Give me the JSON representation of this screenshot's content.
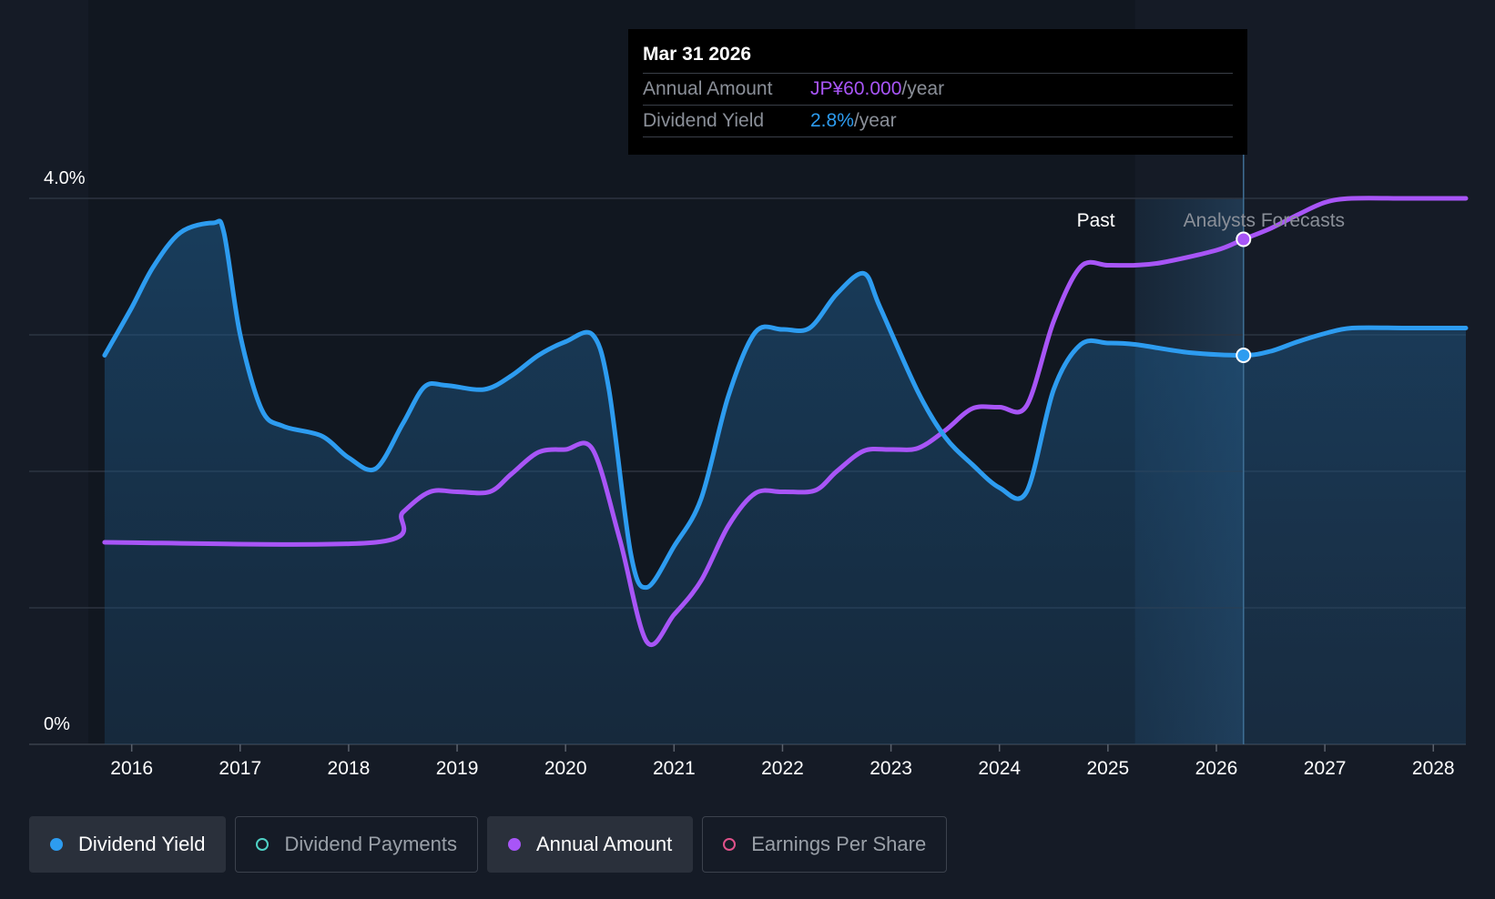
{
  "tooltip": {
    "date": "Mar 31 2026",
    "rows": [
      {
        "label": "Annual Amount",
        "value": "JP¥60.000",
        "unit": "/year"
      },
      {
        "label": "Dividend Yield",
        "value": "2.8%",
        "unit": "/year"
      }
    ]
  },
  "regions": {
    "past": "Past",
    "forecast": "Analysts Forecasts"
  },
  "legend": [
    {
      "label": "Dividend Yield",
      "color": "#2d9cf0",
      "active": true,
      "filled": true
    },
    {
      "label": "Dividend Payments",
      "color": "#4fd1c5",
      "active": false,
      "filled": false
    },
    {
      "label": "Annual Amount",
      "color": "#a855f7",
      "active": true,
      "filled": true
    },
    {
      "label": "Earnings Per Share",
      "color": "#e0528a",
      "active": false,
      "filled": false
    }
  ],
  "chart_data": {
    "type": "line",
    "xlim": [
      2015.6,
      2028.3
    ],
    "ylim": [
      0,
      4.0
    ],
    "ytick_labels": [
      {
        "value": 4.0,
        "label": "4.0%"
      },
      {
        "value": 0,
        "label": "0%"
      }
    ],
    "grid_values": [
      1.0,
      2.0,
      3.0
    ],
    "x_ticks": [
      2016,
      2017,
      2018,
      2019,
      2020,
      2021,
      2022,
      2023,
      2024,
      2025,
      2026,
      2027,
      2028
    ],
    "forecast_start": 2025.25,
    "highlight_x": 2026.25,
    "series": [
      {
        "name": "Dividend Yield",
        "color": "#2d9cf0",
        "unit": "%",
        "points": [
          [
            2015.75,
            2.85
          ],
          [
            2016.0,
            3.2
          ],
          [
            2016.2,
            3.5
          ],
          [
            2016.45,
            3.75
          ],
          [
            2016.75,
            3.82
          ],
          [
            2016.85,
            3.75
          ],
          [
            2017.0,
            3.0
          ],
          [
            2017.2,
            2.45
          ],
          [
            2017.4,
            2.33
          ],
          [
            2017.75,
            2.26
          ],
          [
            2018.0,
            2.1
          ],
          [
            2018.25,
            2.02
          ],
          [
            2018.5,
            2.35
          ],
          [
            2018.7,
            2.62
          ],
          [
            2018.9,
            2.63
          ],
          [
            2019.25,
            2.6
          ],
          [
            2019.5,
            2.7
          ],
          [
            2019.75,
            2.85
          ],
          [
            2020.0,
            2.95
          ],
          [
            2020.25,
            3.0
          ],
          [
            2020.4,
            2.6
          ],
          [
            2020.6,
            1.4
          ],
          [
            2020.75,
            1.15
          ],
          [
            2021.0,
            1.45
          ],
          [
            2021.25,
            1.8
          ],
          [
            2021.5,
            2.55
          ],
          [
            2021.75,
            3.02
          ],
          [
            2022.0,
            3.04
          ],
          [
            2022.25,
            3.05
          ],
          [
            2022.5,
            3.3
          ],
          [
            2022.75,
            3.45
          ],
          [
            2022.9,
            3.2
          ],
          [
            2023.25,
            2.58
          ],
          [
            2023.5,
            2.25
          ],
          [
            2023.75,
            2.05
          ],
          [
            2024.0,
            1.88
          ],
          [
            2024.25,
            1.85
          ],
          [
            2024.5,
            2.6
          ],
          [
            2024.75,
            2.93
          ],
          [
            2025.0,
            2.94
          ],
          [
            2025.25,
            2.93
          ],
          [
            2025.75,
            2.87
          ],
          [
            2026.25,
            2.85
          ],
          [
            2026.5,
            2.88
          ],
          [
            2026.75,
            2.95
          ],
          [
            2027.0,
            3.01
          ],
          [
            2027.25,
            3.05
          ],
          [
            2027.75,
            3.05
          ],
          [
            2028.3,
            3.05
          ]
        ]
      },
      {
        "name": "Annual Amount",
        "color": "#a855f7",
        "unit": "%",
        "points": [
          [
            2015.75,
            1.48
          ],
          [
            2018.25,
            1.48
          ],
          [
            2018.5,
            1.7
          ],
          [
            2018.75,
            1.85
          ],
          [
            2019.0,
            1.85
          ],
          [
            2019.3,
            1.85
          ],
          [
            2019.5,
            1.98
          ],
          [
            2019.75,
            2.14
          ],
          [
            2020.0,
            2.16
          ],
          [
            2020.25,
            2.16
          ],
          [
            2020.5,
            1.5
          ],
          [
            2020.75,
            0.75
          ],
          [
            2021.0,
            0.95
          ],
          [
            2021.25,
            1.2
          ],
          [
            2021.5,
            1.6
          ],
          [
            2021.75,
            1.84
          ],
          [
            2022.0,
            1.85
          ],
          [
            2022.3,
            1.86
          ],
          [
            2022.5,
            2.0
          ],
          [
            2022.75,
            2.15
          ],
          [
            2023.0,
            2.16
          ],
          [
            2023.25,
            2.17
          ],
          [
            2023.5,
            2.3
          ],
          [
            2023.75,
            2.46
          ],
          [
            2024.0,
            2.47
          ],
          [
            2024.25,
            2.48
          ],
          [
            2024.5,
            3.1
          ],
          [
            2024.75,
            3.5
          ],
          [
            2025.0,
            3.51
          ],
          [
            2025.25,
            3.51
          ],
          [
            2025.5,
            3.53
          ],
          [
            2026.0,
            3.62
          ],
          [
            2026.25,
            3.7
          ],
          [
            2026.5,
            3.78
          ],
          [
            2026.75,
            3.88
          ],
          [
            2027.0,
            3.97
          ],
          [
            2027.25,
            4.0
          ],
          [
            2027.75,
            4.0
          ],
          [
            2028.3,
            4.0
          ]
        ]
      }
    ]
  }
}
